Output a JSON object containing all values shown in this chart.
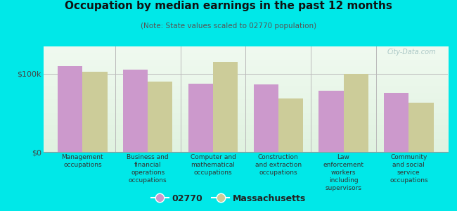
{
  "title": "Occupation by median earnings in the past 12 months",
  "subtitle": "(Note: State values scaled to 02770 population)",
  "categories": [
    "Management\noccupations",
    "Business and\nfinancial\noperations\noccupations",
    "Computer and\nmathematical\noccupations",
    "Construction\nand extraction\noccupations",
    "Law\nenforcement\nworkers\nincluding\nsupervisors",
    "Community\nand social\nservice\noccupations"
  ],
  "values_02770": [
    110000,
    105000,
    87000,
    86000,
    78000,
    76000
  ],
  "values_mass": [
    103000,
    90000,
    115000,
    68000,
    100000,
    63000
  ],
  "color_02770": "#cc99cc",
  "color_mass": "#cccc99",
  "ylim": [
    0,
    135000
  ],
  "yticks": [
    0,
    100000
  ],
  "ytick_labels": [
    "$0",
    "$100k"
  ],
  "background_color": "#00e8e8",
  "plot_bg_colors": [
    "#f0faf0",
    "#e0f2e0"
  ],
  "legend_label_02770": "02770",
  "legend_label_mass": "Massachusetts",
  "watermark": "City-Data.com"
}
